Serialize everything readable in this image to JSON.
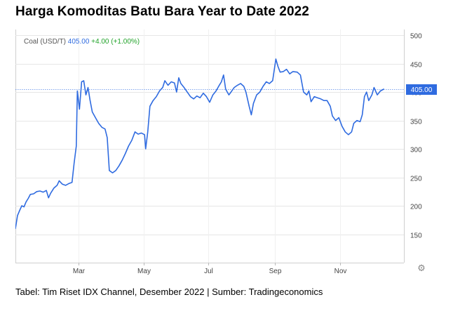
{
  "page": {
    "title": "Harga Komoditas Batu Bara Year to Date 2022",
    "caption": "Tabel: Tim Riset IDX Channel, Desember 2022 | Sumber: Tradingeconomics"
  },
  "icons": {
    "settings": "gear-icon"
  },
  "colors": {
    "line": "#2f6be0",
    "change": "#22a32a",
    "current_label_bg": "#2f6be0",
    "grid": "#e6e6e6"
  },
  "chart_data": {
    "type": "line",
    "legend": {
      "series": "Coal (USD/T)",
      "last": "405.00",
      "change": "+4.00 (+1.00%)"
    },
    "current_value_label": "405.00",
    "current_value": 405,
    "x_tick_labels": [
      "Mar",
      "May",
      "Jul",
      "Sep",
      "Nov"
    ],
    "y_tick_labels": [
      "150",
      "200",
      "250",
      "300",
      "350",
      "400",
      "450",
      "500"
    ],
    "ylim": [
      100,
      510
    ],
    "xlim": [
      "2022-01-01",
      "2022-12-31"
    ],
    "grid": true,
    "series": [
      {
        "name": "Coal (USD/T)",
        "points": [
          [
            "2022-01-01",
            160
          ],
          [
            "2022-01-03",
            183
          ],
          [
            "2022-01-05",
            192
          ],
          [
            "2022-01-07",
            200
          ],
          [
            "2022-01-09",
            198
          ],
          [
            "2022-01-11",
            207
          ],
          [
            "2022-01-13",
            213
          ],
          [
            "2022-01-15",
            220
          ],
          [
            "2022-01-18",
            221
          ],
          [
            "2022-01-21",
            225
          ],
          [
            "2022-01-24",
            226
          ],
          [
            "2022-01-27",
            224
          ],
          [
            "2022-01-30",
            227
          ],
          [
            "2022-02-01",
            214
          ],
          [
            "2022-02-03",
            222
          ],
          [
            "2022-02-06",
            231
          ],
          [
            "2022-02-09",
            236
          ],
          [
            "2022-02-11",
            244
          ],
          [
            "2022-02-14",
            238
          ],
          [
            "2022-02-17",
            236
          ],
          [
            "2022-02-20",
            239
          ],
          [
            "2022-02-23",
            241
          ],
          [
            "2022-02-25",
            275
          ],
          [
            "2022-02-27",
            305
          ],
          [
            "2022-02-28",
            402
          ],
          [
            "2022-03-02",
            370
          ],
          [
            "2022-03-04",
            418
          ],
          [
            "2022-03-06",
            420
          ],
          [
            "2022-03-08",
            395
          ],
          [
            "2022-03-10",
            408
          ],
          [
            "2022-03-12",
            385
          ],
          [
            "2022-03-14",
            365
          ],
          [
            "2022-03-17",
            355
          ],
          [
            "2022-03-20",
            345
          ],
          [
            "2022-03-23",
            338
          ],
          [
            "2022-03-26",
            335
          ],
          [
            "2022-03-28",
            320
          ],
          [
            "2022-03-30",
            262
          ],
          [
            "2022-04-02",
            258
          ],
          [
            "2022-04-05",
            262
          ],
          [
            "2022-04-08",
            270
          ],
          [
            "2022-04-11",
            280
          ],
          [
            "2022-04-14",
            292
          ],
          [
            "2022-04-17",
            305
          ],
          [
            "2022-04-20",
            315
          ],
          [
            "2022-04-23",
            330
          ],
          [
            "2022-04-26",
            326
          ],
          [
            "2022-04-29",
            328
          ],
          [
            "2022-05-02",
            325
          ],
          [
            "2022-05-03",
            300
          ],
          [
            "2022-05-05",
            330
          ],
          [
            "2022-05-07",
            375
          ],
          [
            "2022-05-10",
            385
          ],
          [
            "2022-05-13",
            392
          ],
          [
            "2022-05-16",
            402
          ],
          [
            "2022-05-19",
            408
          ],
          [
            "2022-05-21",
            420
          ],
          [
            "2022-05-24",
            412
          ],
          [
            "2022-05-27",
            418
          ],
          [
            "2022-05-30",
            416
          ],
          [
            "2022-06-01",
            400
          ],
          [
            "2022-06-03",
            425
          ],
          [
            "2022-06-05",
            415
          ],
          [
            "2022-06-08",
            408
          ],
          [
            "2022-06-11",
            400
          ],
          [
            "2022-06-14",
            392
          ],
          [
            "2022-06-17",
            388
          ],
          [
            "2022-06-20",
            393
          ],
          [
            "2022-06-23",
            390
          ],
          [
            "2022-06-26",
            398
          ],
          [
            "2022-06-29",
            392
          ],
          [
            "2022-07-02",
            382
          ],
          [
            "2022-07-05",
            395
          ],
          [
            "2022-07-08",
            402
          ],
          [
            "2022-07-11",
            412
          ],
          [
            "2022-07-13",
            418
          ],
          [
            "2022-07-15",
            430
          ],
          [
            "2022-07-17",
            405
          ],
          [
            "2022-07-20",
            395
          ],
          [
            "2022-07-22",
            400
          ],
          [
            "2022-07-25",
            408
          ],
          [
            "2022-07-28",
            412
          ],
          [
            "2022-07-31",
            415
          ],
          [
            "2022-08-03",
            410
          ],
          [
            "2022-08-05",
            400
          ],
          [
            "2022-08-08",
            375
          ],
          [
            "2022-08-10",
            360
          ],
          [
            "2022-08-12",
            380
          ],
          [
            "2022-08-15",
            395
          ],
          [
            "2022-08-18",
            400
          ],
          [
            "2022-08-21",
            410
          ],
          [
            "2022-08-24",
            418
          ],
          [
            "2022-08-27",
            415
          ],
          [
            "2022-08-30",
            420
          ],
          [
            "2022-09-02",
            458
          ],
          [
            "2022-09-04",
            445
          ],
          [
            "2022-09-06",
            435
          ],
          [
            "2022-09-09",
            436
          ],
          [
            "2022-09-12",
            440
          ],
          [
            "2022-09-15",
            432
          ],
          [
            "2022-09-18",
            436
          ],
          [
            "2022-09-22",
            435
          ],
          [
            "2022-09-25",
            430
          ],
          [
            "2022-09-28",
            400
          ],
          [
            "2022-10-01",
            395
          ],
          [
            "2022-10-03",
            402
          ],
          [
            "2022-10-05",
            383
          ],
          [
            "2022-10-08",
            392
          ],
          [
            "2022-10-11",
            390
          ],
          [
            "2022-10-14",
            388
          ],
          [
            "2022-10-17",
            385
          ],
          [
            "2022-10-20",
            385
          ],
          [
            "2022-10-23",
            375
          ],
          [
            "2022-10-25",
            358
          ],
          [
            "2022-10-28",
            350
          ],
          [
            "2022-10-31",
            355
          ],
          [
            "2022-11-03",
            340
          ],
          [
            "2022-11-06",
            330
          ],
          [
            "2022-11-09",
            325
          ],
          [
            "2022-11-12",
            330
          ],
          [
            "2022-11-14",
            345
          ],
          [
            "2022-11-17",
            350
          ],
          [
            "2022-11-20",
            348
          ],
          [
            "2022-11-22",
            360
          ],
          [
            "2022-11-24",
            392
          ],
          [
            "2022-11-26",
            400
          ],
          [
            "2022-11-28",
            385
          ],
          [
            "2022-12-01",
            395
          ],
          [
            "2022-12-03",
            408
          ],
          [
            "2022-12-06",
            395
          ],
          [
            "2022-12-09",
            402
          ],
          [
            "2022-12-12",
            405
          ]
        ]
      }
    ]
  }
}
